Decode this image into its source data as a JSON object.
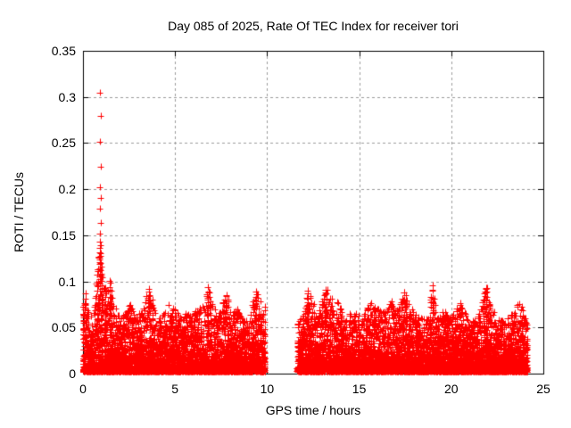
{
  "figure": {
    "title": "Day 085 of 2025, Rate Of TEC Index for receiver tori",
    "xlabel": "GPS time / hours",
    "ylabel": "ROTI / TECUs"
  },
  "chart_data": {
    "type": "scatter",
    "title": "Day 085 of 2025, Rate Of TEC Index for receiver tori",
    "xlabel": "GPS time / hours",
    "ylabel": "ROTI / TECUs",
    "xlim": [
      0,
      25
    ],
    "ylim": [
      0,
      0.35
    ],
    "xticks": [
      0,
      5,
      10,
      15,
      20,
      25
    ],
    "xtick_labels": [
      "0",
      "5",
      "10",
      "15",
      "20",
      "25"
    ],
    "yticks": [
      0,
      0.05,
      0.1,
      0.15,
      0.2,
      0.25,
      0.3,
      0.35
    ],
    "ytick_labels": [
      "0",
      "0.05",
      "0.1",
      "0.15",
      "0.2",
      "0.25",
      "0.3",
      "0.35"
    ],
    "grid": true,
    "legend": "none",
    "marker": "plus",
    "marker_color": "#ff0000",
    "grid_color": "#9c9c9c",
    "border_color": "#000000",
    "background_color": "#ffffff",
    "band_typical": [
      0.0,
      0.04
    ],
    "segments": [
      {
        "x_start": 0.0,
        "x_end": 9.9
      },
      {
        "x_start": 11.65,
        "x_end": 24.15
      }
    ],
    "envelope": [
      [
        0.0,
        0.075
      ],
      [
        0.15,
        0.09
      ],
      [
        0.4,
        0.06
      ],
      [
        0.6,
        0.07
      ],
      [
        0.8,
        0.115
      ],
      [
        0.92,
        0.135
      ],
      [
        1.0,
        0.11
      ],
      [
        1.2,
        0.09
      ],
      [
        1.45,
        0.103
      ],
      [
        1.7,
        0.075
      ],
      [
        2.0,
        0.06
      ],
      [
        2.3,
        0.065
      ],
      [
        2.65,
        0.075
      ],
      [
        2.9,
        0.06
      ],
      [
        3.2,
        0.07
      ],
      [
        3.6,
        0.092
      ],
      [
        3.9,
        0.07
      ],
      [
        4.2,
        0.06
      ],
      [
        4.5,
        0.065
      ],
      [
        4.75,
        0.078
      ],
      [
        5.0,
        0.07
      ],
      [
        5.3,
        0.06
      ],
      [
        5.6,
        0.065
      ],
      [
        5.9,
        0.06
      ],
      [
        6.2,
        0.07
      ],
      [
        6.5,
        0.075
      ],
      [
        6.8,
        0.095
      ],
      [
        7.1,
        0.07
      ],
      [
        7.4,
        0.065
      ],
      [
        7.8,
        0.088
      ],
      [
        8.1,
        0.065
      ],
      [
        8.4,
        0.07
      ],
      [
        8.7,
        0.06
      ],
      [
        9.0,
        0.055
      ],
      [
        9.4,
        0.091
      ],
      [
        9.7,
        0.075
      ],
      [
        9.9,
        0.08
      ],
      [
        11.65,
        0.055
      ],
      [
        11.9,
        0.06
      ],
      [
        12.2,
        0.09
      ],
      [
        12.5,
        0.08
      ],
      [
        12.8,
        0.07
      ],
      [
        13.2,
        0.094
      ],
      [
        13.5,
        0.08
      ],
      [
        13.85,
        0.078
      ],
      [
        14.2,
        0.06
      ],
      [
        14.5,
        0.065
      ],
      [
        14.8,
        0.065
      ],
      [
        15.1,
        0.06
      ],
      [
        15.4,
        0.07
      ],
      [
        15.8,
        0.078
      ],
      [
        16.1,
        0.07
      ],
      [
        16.45,
        0.065
      ],
      [
        16.75,
        0.078
      ],
      [
        17.0,
        0.065
      ],
      [
        17.45,
        0.088
      ],
      [
        17.65,
        0.08
      ],
      [
        18.0,
        0.065
      ],
      [
        18.4,
        0.06
      ],
      [
        18.75,
        0.06
      ],
      [
        19.0,
        0.097
      ],
      [
        19.3,
        0.06
      ],
      [
        19.6,
        0.07
      ],
      [
        19.9,
        0.06
      ],
      [
        20.2,
        0.065
      ],
      [
        20.5,
        0.078
      ],
      [
        20.8,
        0.065
      ],
      [
        21.1,
        0.055
      ],
      [
        21.4,
        0.06
      ],
      [
        21.9,
        0.094
      ],
      [
        22.2,
        0.07
      ],
      [
        22.6,
        0.06
      ],
      [
        22.9,
        0.055
      ],
      [
        23.2,
        0.06
      ],
      [
        23.6,
        0.082
      ],
      [
        23.9,
        0.07
      ],
      [
        24.15,
        0.06
      ]
    ],
    "outliers": [
      [
        0.93,
        0.305
      ],
      [
        0.95,
        0.279
      ],
      [
        0.93,
        0.251
      ],
      [
        0.95,
        0.224
      ],
      [
        0.94,
        0.202
      ],
      [
        0.95,
        0.19
      ],
      [
        0.93,
        0.179
      ],
      [
        0.95,
        0.163
      ],
      [
        0.94,
        0.152
      ],
      [
        0.91,
        0.143
      ],
      [
        0.96,
        0.139
      ],
      [
        0.93,
        0.136
      ],
      [
        0.98,
        0.131
      ],
      [
        0.95,
        0.128
      ],
      [
        0.92,
        0.124
      ],
      [
        0.97,
        0.12
      ],
      [
        1.0,
        0.116
      ],
      [
        0.95,
        0.112
      ],
      [
        1.02,
        0.108
      ],
      [
        1.06,
        0.104
      ],
      [
        0.9,
        0.119
      ],
      [
        0.88,
        0.127
      ]
    ]
  }
}
